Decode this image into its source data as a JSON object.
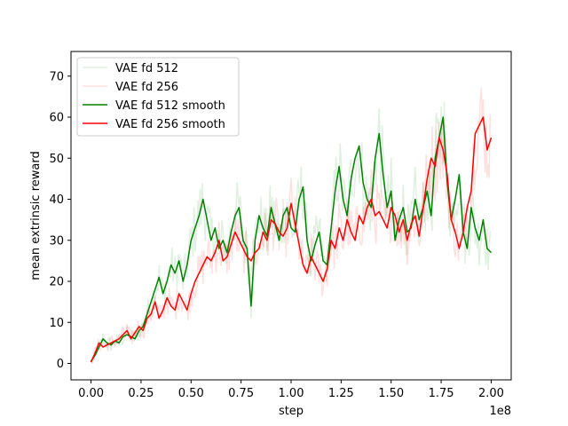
{
  "chart_data": {
    "type": "line",
    "title": "",
    "xlabel": "step",
    "ylabel": "mean extrinsic reward",
    "x_offset_label": "1e8",
    "xlim": [
      -0.1,
      2.1
    ],
    "ylim": [
      -4,
      76
    ],
    "xticks": [
      0,
      0.25,
      0.5,
      0.75,
      1.0,
      1.25,
      1.5,
      1.75,
      2.0
    ],
    "xtick_labels": [
      "0.00",
      "0.25",
      "0.50",
      "0.75",
      "1.00",
      "1.25",
      "1.50",
      "1.75",
      "2.00"
    ],
    "yticks": [
      0,
      10,
      20,
      30,
      40,
      50,
      60,
      70
    ],
    "ytick_labels": [
      "0",
      "10",
      "20",
      "30",
      "40",
      "50",
      "60",
      "70"
    ],
    "grid": false,
    "legend": {
      "position": "top-left",
      "entries": [
        "VAE fd 512",
        "VAE fd 256",
        "VAE fd 512 smooth",
        "VAE fd 256 smooth"
      ]
    },
    "series": [
      {
        "name": "VAE fd 512 smooth",
        "color": "#008000",
        "x": [
          0,
          0.02,
          0.04,
          0.06,
          0.08,
          0.1,
          0.12,
          0.14,
          0.16,
          0.18,
          0.2,
          0.22,
          0.24,
          0.26,
          0.28,
          0.3,
          0.32,
          0.34,
          0.36,
          0.38,
          0.4,
          0.42,
          0.44,
          0.46,
          0.48,
          0.5,
          0.52,
          0.54,
          0.56,
          0.58,
          0.6,
          0.62,
          0.64,
          0.66,
          0.68,
          0.7,
          0.72,
          0.74,
          0.76,
          0.78,
          0.8,
          0.82,
          0.84,
          0.86,
          0.88,
          0.9,
          0.92,
          0.94,
          0.96,
          0.98,
          1.0,
          1.02,
          1.04,
          1.06,
          1.08,
          1.1,
          1.12,
          1.14,
          1.16,
          1.18,
          1.2,
          1.22,
          1.24,
          1.26,
          1.28,
          1.3,
          1.32,
          1.34,
          1.36,
          1.38,
          1.4,
          1.42,
          1.44,
          1.46,
          1.48,
          1.5,
          1.52,
          1.54,
          1.56,
          1.58,
          1.6,
          1.62,
          1.64,
          1.66,
          1.68,
          1.7,
          1.72,
          1.74,
          1.76,
          1.78,
          1.8,
          1.82,
          1.84,
          1.86,
          1.88,
          1.9,
          1.92,
          1.94,
          1.96,
          1.98,
          2.0
        ],
        "y": [
          0.5,
          2,
          4,
          6,
          5,
          4.5,
          5.5,
          5,
          6.5,
          7,
          6.5,
          6,
          8,
          9,
          12,
          15,
          18,
          21,
          17,
          20,
          24,
          22,
          25,
          20,
          24,
          30,
          33,
          36,
          40,
          35,
          30,
          33,
          28,
          30,
          27,
          32,
          36,
          38,
          30,
          28,
          14,
          30,
          36,
          33,
          31,
          38,
          34,
          30,
          36,
          38,
          33,
          32,
          40,
          43,
          30,
          25,
          29,
          32,
          25,
          24,
          33,
          42,
          48,
          40,
          36,
          45,
          50,
          53,
          44,
          40,
          38,
          50,
          56,
          46,
          38,
          42,
          30,
          35,
          38,
          32,
          33,
          40,
          35,
          38,
          42,
          36,
          50,
          55,
          60,
          44,
          35,
          40,
          46,
          32,
          28,
          38,
          33,
          30,
          35,
          28,
          27
        ]
      },
      {
        "name": "VAE fd 256 smooth",
        "color": "#ff0000",
        "x": [
          0,
          0.02,
          0.04,
          0.06,
          0.08,
          0.1,
          0.12,
          0.14,
          0.16,
          0.18,
          0.2,
          0.22,
          0.24,
          0.26,
          0.28,
          0.3,
          0.32,
          0.34,
          0.36,
          0.38,
          0.4,
          0.42,
          0.44,
          0.46,
          0.48,
          0.5,
          0.52,
          0.54,
          0.56,
          0.58,
          0.6,
          0.62,
          0.64,
          0.66,
          0.68,
          0.7,
          0.72,
          0.74,
          0.76,
          0.78,
          0.8,
          0.82,
          0.84,
          0.86,
          0.88,
          0.9,
          0.92,
          0.94,
          0.96,
          0.98,
          1.0,
          1.02,
          1.04,
          1.06,
          1.08,
          1.1,
          1.12,
          1.14,
          1.16,
          1.18,
          1.2,
          1.22,
          1.24,
          1.26,
          1.28,
          1.3,
          1.32,
          1.34,
          1.36,
          1.38,
          1.4,
          1.42,
          1.44,
          1.46,
          1.48,
          1.5,
          1.52,
          1.54,
          1.56,
          1.58,
          1.6,
          1.62,
          1.64,
          1.66,
          1.68,
          1.7,
          1.72,
          1.74,
          1.76,
          1.78,
          1.8,
          1.82,
          1.84,
          1.86,
          1.88,
          1.9,
          1.92,
          1.94,
          1.96,
          1.98,
          2.0
        ],
        "y": [
          0.3,
          2.5,
          5,
          4,
          4.5,
          5,
          5.5,
          6,
          7,
          8,
          6,
          7.5,
          9,
          8,
          11,
          12,
          15,
          11,
          13,
          16,
          14,
          13,
          17,
          15,
          13,
          17,
          20,
          22,
          24,
          26,
          25,
          27,
          30,
          25,
          26,
          29,
          32,
          30,
          28,
          26,
          25,
          27,
          28,
          32,
          30,
          35,
          34,
          32,
          31,
          33,
          39,
          34,
          29,
          24,
          22,
          26,
          24,
          22,
          20,
          23,
          30,
          28,
          33,
          30,
          35,
          32,
          30,
          36,
          34,
          38,
          40,
          36,
          37,
          35,
          33,
          38,
          36,
          32,
          35,
          30,
          34,
          36,
          31,
          38,
          45,
          50,
          48,
          55,
          52,
          46,
          35,
          32,
          28,
          32,
          38,
          42,
          56,
          58,
          60,
          52,
          55
        ]
      }
    ]
  }
}
